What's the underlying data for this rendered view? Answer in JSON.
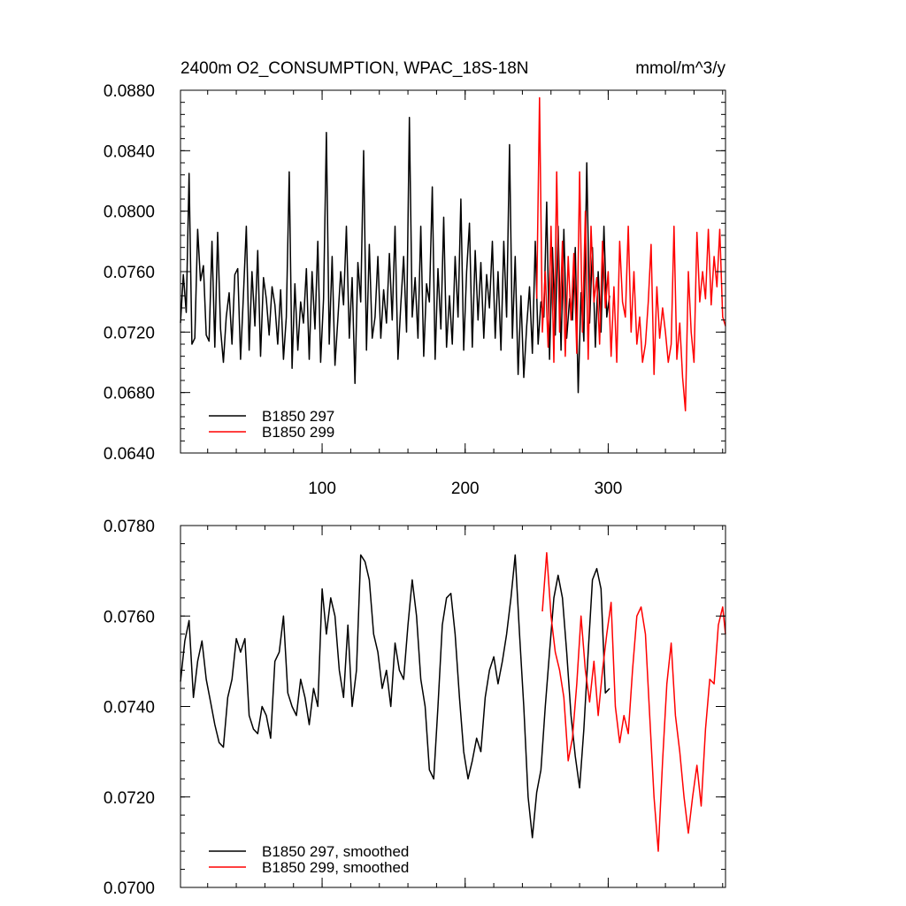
{
  "figure": {
    "title": "2400m O2_CONSUMPTION, WPAC_18S-18N",
    "units": "mmol/m^3/y"
  },
  "colors": {
    "b1850_297": "#000000",
    "b1850_299": "#ff0000"
  },
  "chart_data": [
    {
      "type": "line",
      "title": "2400m O2_CONSUMPTION, WPAC_18S-18N",
      "units": "mmol/m^3/y",
      "xlim": [
        1,
        382
      ],
      "ylim": [
        0.064,
        0.088
      ],
      "y_major_ticks": [
        0.064,
        0.068,
        0.072,
        0.076,
        0.08,
        0.084,
        0.088
      ],
      "y_tick_labels": [
        "0.0640",
        "0.0680",
        "0.0720",
        "0.0760",
        "0.0800",
        "0.0840",
        "0.0880"
      ],
      "y_minor_step": 0.0008,
      "x_major_ticks": [
        100,
        200,
        300
      ],
      "x_tick_labels": [
        "100",
        "200",
        "300"
      ],
      "x_minor_step": 20,
      "legend_position": "bottom-left",
      "grid": false,
      "series": [
        {
          "name": "B1850 297",
          "x": [
            1,
            3,
            5,
            7,
            9,
            11,
            13,
            15,
            17,
            19,
            21,
            23,
            25,
            27,
            29,
            31,
            33,
            35,
            37,
            39,
            41,
            43,
            45,
            47,
            49,
            51,
            53,
            55,
            57,
            59,
            61,
            63,
            65,
            67,
            69,
            71,
            73,
            75,
            77,
            79,
            81,
            83,
            85,
            87,
            89,
            91,
            93,
            95,
            97,
            99,
            101,
            103,
            105,
            107,
            109,
            111,
            113,
            115,
            117,
            119,
            121,
            123,
            125,
            127,
            129,
            131,
            133,
            135,
            137,
            139,
            141,
            143,
            145,
            147,
            149,
            151,
            153,
            155,
            157,
            159,
            161,
            163,
            165,
            167,
            169,
            171,
            173,
            175,
            177,
            179,
            181,
            183,
            185,
            187,
            189,
            191,
            193,
            195,
            197,
            199,
            201,
            203,
            205,
            207,
            209,
            211,
            213,
            215,
            217,
            219,
            221,
            223,
            225,
            227,
            229,
            231,
            233,
            235,
            237,
            239,
            241,
            243,
            245,
            247,
            249,
            251,
            253,
            255,
            257,
            259,
            261,
            263,
            265,
            267,
            269,
            271,
            273,
            275,
            277,
            279,
            281,
            283,
            285,
            287,
            289,
            291,
            293,
            295,
            297,
            299,
            301
          ],
          "values": [
            0.0726,
            0.0758,
            0.0733,
            0.0825,
            0.0712,
            0.0716,
            0.0788,
            0.0754,
            0.0764,
            0.0718,
            0.0714,
            0.078,
            0.071,
            0.0786,
            0.0722,
            0.07,
            0.073,
            0.0746,
            0.0712,
            0.0758,
            0.0762,
            0.0702,
            0.0744,
            0.079,
            0.0708,
            0.076,
            0.0724,
            0.0774,
            0.0704,
            0.0756,
            0.0742,
            0.0718,
            0.075,
            0.0738,
            0.0712,
            0.0748,
            0.0702,
            0.073,
            0.0826,
            0.0696,
            0.0752,
            0.0708,
            0.074,
            0.0726,
            0.0762,
            0.0702,
            0.076,
            0.0722,
            0.078,
            0.07,
            0.0742,
            0.0852,
            0.0712,
            0.077,
            0.0698,
            0.0728,
            0.076,
            0.0738,
            0.079,
            0.0716,
            0.0756,
            0.0686,
            0.0766,
            0.074,
            0.084,
            0.0708,
            0.0778,
            0.0716,
            0.073,
            0.077,
            0.0716,
            0.0748,
            0.0726,
            0.0772,
            0.0728,
            0.079,
            0.0702,
            0.0738,
            0.077,
            0.072,
            0.0862,
            0.073,
            0.0756,
            0.0716,
            0.079,
            0.0704,
            0.0752,
            0.074,
            0.0816,
            0.0702,
            0.0762,
            0.0722,
            0.0796,
            0.071,
            0.0744,
            0.0712,
            0.077,
            0.073,
            0.0808,
            0.0708,
            0.076,
            0.0792,
            0.071,
            0.0774,
            0.0728,
            0.0766,
            0.0716,
            0.0758,
            0.0736,
            0.078,
            0.0716,
            0.076,
            0.0708,
            0.078,
            0.073,
            0.0844,
            0.0716,
            0.077,
            0.0692,
            0.0744,
            0.069,
            0.0724,
            0.075,
            0.0706,
            0.078,
            0.0712,
            0.074,
            0.073,
            0.0806,
            0.0702,
            0.0776,
            0.0718,
            0.079,
            0.0708,
            0.0788,
            0.0716,
            0.0742,
            0.0728,
            0.0776,
            0.068,
            0.0746,
            0.0714,
            0.0832,
            0.0726,
            0.0776,
            0.071,
            0.076,
            0.072,
            0.079,
            0.073,
            0.0744
          ]
        },
        {
          "name": "B1850 299",
          "x": [
            250,
            252,
            254,
            256,
            258,
            260,
            262,
            264,
            266,
            268,
            270,
            272,
            274,
            276,
            278,
            280,
            282,
            284,
            286,
            288,
            290,
            292,
            294,
            296,
            298,
            300,
            302,
            304,
            306,
            308,
            310,
            312,
            314,
            316,
            318,
            320,
            322,
            324,
            326,
            328,
            330,
            332,
            334,
            336,
            338,
            340,
            342,
            344,
            346,
            348,
            350,
            352,
            354,
            356,
            358,
            360,
            362,
            364,
            366,
            368,
            370,
            372,
            374,
            376,
            378,
            380,
            382
          ],
          "values": [
            0.0742,
            0.0875,
            0.072,
            0.076,
            0.071,
            0.079,
            0.07,
            0.0826,
            0.072,
            0.078,
            0.0704,
            0.077,
            0.0728,
            0.0772,
            0.0706,
            0.0826,
            0.072,
            0.08,
            0.0702,
            0.079,
            0.074,
            0.0756,
            0.0712,
            0.078,
            0.0736,
            0.076,
            0.0704,
            0.075,
            0.07,
            0.078,
            0.074,
            0.073,
            0.079,
            0.072,
            0.076,
            0.0712,
            0.073,
            0.07,
            0.0712,
            0.074,
            0.0778,
            0.0692,
            0.075,
            0.0716,
            0.0736,
            0.072,
            0.07,
            0.0712,
            0.079,
            0.0702,
            0.0726,
            0.069,
            0.0668,
            0.076,
            0.072,
            0.07,
            0.0786,
            0.074,
            0.076,
            0.0742,
            0.0788,
            0.0738,
            0.077,
            0.075,
            0.0788,
            0.073,
            0.0724
          ]
        }
      ],
      "legend": [
        "B1850 297",
        "B1850 299"
      ]
    },
    {
      "type": "line",
      "xlim": [
        1,
        382
      ],
      "ylim": [
        0.07,
        0.078
      ],
      "y_major_ticks": [
        0.07,
        0.072,
        0.074,
        0.076,
        0.078
      ],
      "y_tick_labels": [
        "0.0700",
        "0.0720",
        "0.0740",
        "0.0760",
        "0.0780"
      ],
      "y_minor_step": 0.0004,
      "x_major_ticks": [
        100,
        200,
        300
      ],
      "x_tick_labels": [],
      "x_minor_step": 20,
      "legend_position": "bottom-left",
      "grid": false,
      "series": [
        {
          "name": "B1850 297, smoothed",
          "x": [
            1,
            4,
            7,
            10,
            13,
            16,
            19,
            22,
            25,
            28,
            31,
            34,
            37,
            40,
            43,
            46,
            49,
            52,
            55,
            58,
            61,
            64,
            67,
            70,
            73,
            76,
            79,
            82,
            85,
            88,
            91,
            94,
            97,
            100,
            103,
            106,
            109,
            112,
            115,
            118,
            121,
            124,
            127,
            130,
            133,
            136,
            139,
            142,
            145,
            148,
            151,
            154,
            157,
            160,
            163,
            166,
            169,
            172,
            175,
            178,
            181,
            184,
            187,
            190,
            193,
            196,
            199,
            202,
            205,
            208,
            211,
            214,
            217,
            220,
            223,
            226,
            229,
            232,
            235,
            238,
            241,
            244,
            247,
            250,
            253,
            256,
            259,
            262,
            265,
            268,
            271,
            274,
            277,
            280,
            283,
            286,
            289,
            292,
            295,
            298,
            301
          ],
          "values": [
            0.07455,
            0.07545,
            0.0759,
            0.0742,
            0.075,
            0.07545,
            0.0746,
            0.0741,
            0.0736,
            0.0732,
            0.0731,
            0.0742,
            0.0746,
            0.0755,
            0.0752,
            0.0755,
            0.0738,
            0.0735,
            0.0734,
            0.074,
            0.0738,
            0.0733,
            0.075,
            0.0752,
            0.076,
            0.0743,
            0.074,
            0.0738,
            0.0746,
            0.0742,
            0.0736,
            0.0744,
            0.074,
            0.0766,
            0.0756,
            0.0764,
            0.076,
            0.0748,
            0.0742,
            0.0758,
            0.074,
            0.0748,
            0.07735,
            0.0772,
            0.0768,
            0.0756,
            0.0752,
            0.0744,
            0.0748,
            0.074,
            0.0754,
            0.0748,
            0.0746,
            0.0758,
            0.0768,
            0.076,
            0.0746,
            0.074,
            0.0726,
            0.0724,
            0.074,
            0.0758,
            0.0764,
            0.0765,
            0.0756,
            0.0742,
            0.073,
            0.0724,
            0.0728,
            0.0733,
            0.073,
            0.0742,
            0.0748,
            0.0751,
            0.0745,
            0.075,
            0.0756,
            0.0764,
            0.07735,
            0.0756,
            0.074,
            0.072,
            0.0711,
            0.0721,
            0.0726,
            0.074,
            0.0752,
            0.0764,
            0.0769,
            0.0764,
            0.0752,
            0.0738,
            0.0729,
            0.0722,
            0.0735,
            0.0752,
            0.0768,
            0.07705,
            0.0766,
            0.0743,
            0.0744
          ]
        },
        {
          "name": "B1850 299, smoothed",
          "x": [
            254,
            257,
            260,
            263,
            266,
            269,
            272,
            275,
            278,
            281,
            284,
            287,
            290,
            293,
            296,
            299,
            302,
            305,
            308,
            311,
            314,
            317,
            320,
            323,
            326,
            329,
            332,
            335,
            338,
            341,
            344,
            347,
            350,
            353,
            356,
            359,
            362,
            365,
            368,
            371,
            374,
            377,
            380,
            382
          ],
          "values": [
            0.0761,
            0.0774,
            0.076,
            0.0752,
            0.0748,
            0.0742,
            0.0728,
            0.0733,
            0.0745,
            0.076,
            0.0748,
            0.0741,
            0.075,
            0.0738,
            0.0748,
            0.0756,
            0.0763,
            0.074,
            0.0732,
            0.0738,
            0.0734,
            0.0748,
            0.076,
            0.0762,
            0.0756,
            0.0738,
            0.072,
            0.0708,
            0.0728,
            0.0745,
            0.0754,
            0.0738,
            0.073,
            0.072,
            0.0712,
            0.072,
            0.0727,
            0.0718,
            0.0735,
            0.0746,
            0.0745,
            0.0758,
            0.0762,
            0.0756
          ]
        }
      ],
      "legend": [
        "B1850 297, smoothed",
        "B1850 299, smoothed"
      ]
    }
  ]
}
